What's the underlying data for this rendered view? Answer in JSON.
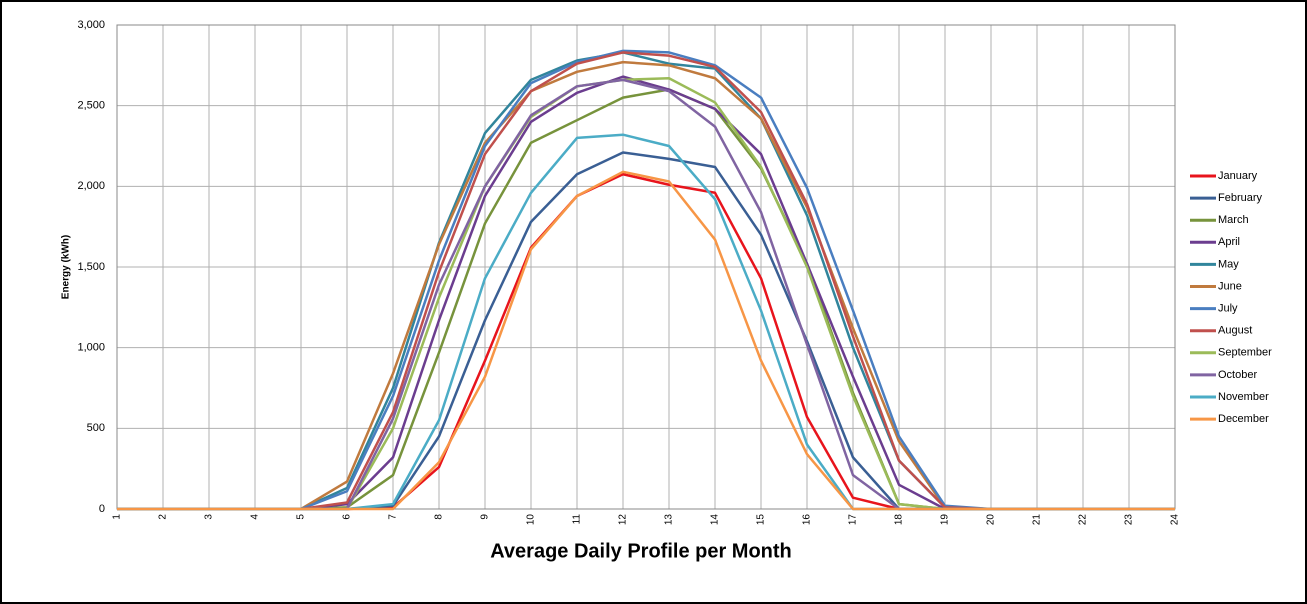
{
  "chart_data": {
    "type": "line",
    "title": "Average Daily Profile per Month",
    "ylabel": "Energy (kWh)",
    "x": [
      1,
      2,
      3,
      4,
      5,
      6,
      7,
      8,
      9,
      10,
      11,
      12,
      13,
      14,
      15,
      16,
      17,
      18,
      19,
      20,
      21,
      22,
      23,
      24
    ],
    "xlim": [
      1,
      24
    ],
    "xticks": [
      1,
      2,
      3,
      4,
      5,
      6,
      7,
      8,
      9,
      10,
      11,
      12,
      13,
      14,
      15,
      16,
      17,
      18,
      19,
      20,
      21,
      22,
      23,
      24
    ],
    "ylim": [
      0,
      3000
    ],
    "yticks": [
      0,
      500,
      {
        "value": 1000,
        "label": "1,000"
      },
      {
        "value": 1500,
        "label": "1,500"
      },
      {
        "value": 2000,
        "label": "2,000"
      },
      {
        "value": 2500,
        "label": "2,500"
      },
      {
        "value": 3000,
        "label": "3,000"
      }
    ],
    "grid": true,
    "legend": "right",
    "series": [
      {
        "name": "January",
        "color": "#e8141c",
        "values": [
          0,
          0,
          0,
          0,
          0,
          0,
          10,
          260,
          920,
          1620,
          1940,
          2075,
          2010,
          1960,
          1430,
          570,
          70,
          0,
          0,
          0,
          0,
          0,
          0,
          0
        ]
      },
      {
        "name": "February",
        "color": "#3a5f94",
        "values": [
          0,
          0,
          0,
          0,
          0,
          0,
          20,
          450,
          1170,
          1780,
          2075,
          2210,
          2170,
          2120,
          1700,
          1040,
          320,
          0,
          0,
          0,
          0,
          0,
          0,
          0
        ]
      },
      {
        "name": "March",
        "color": "#77933c",
        "values": [
          0,
          0,
          0,
          0,
          0,
          10,
          210,
          970,
          1770,
          2270,
          2410,
          2550,
          2600,
          2480,
          2110,
          1520,
          720,
          30,
          0,
          0,
          0,
          0,
          0,
          0
        ]
      },
      {
        "name": "April",
        "color": "#6b3d8f",
        "values": [
          0,
          0,
          0,
          0,
          0,
          30,
          320,
          1170,
          1940,
          2400,
          2580,
          2680,
          2600,
          2480,
          2200,
          1520,
          820,
          150,
          0,
          0,
          0,
          0,
          0,
          0
        ]
      },
      {
        "name": "May",
        "color": "#31859c",
        "values": [
          0,
          0,
          0,
          0,
          0,
          130,
          750,
          1650,
          2330,
          2660,
          2780,
          2830,
          2760,
          2730,
          2420,
          1820,
          1000,
          300,
          10,
          0,
          0,
          0,
          0,
          0
        ]
      },
      {
        "name": "June",
        "color": "#c07a3e",
        "values": [
          0,
          0,
          0,
          0,
          0,
          170,
          840,
          1640,
          2270,
          2590,
          2710,
          2770,
          2750,
          2670,
          2420,
          1870,
          1120,
          420,
          10,
          0,
          0,
          0,
          0,
          0
        ]
      },
      {
        "name": "July",
        "color": "#4a7ec0",
        "values": [
          0,
          0,
          0,
          0,
          0,
          110,
          700,
          1540,
          2250,
          2640,
          2770,
          2840,
          2830,
          2750,
          2550,
          1990,
          1230,
          450,
          20,
          0,
          0,
          0,
          0,
          0
        ]
      },
      {
        "name": "August",
        "color": "#c0504d",
        "values": [
          0,
          0,
          0,
          0,
          0,
          40,
          600,
          1470,
          2200,
          2590,
          2760,
          2830,
          2810,
          2740,
          2460,
          1890,
          1070,
          300,
          10,
          0,
          0,
          0,
          0,
          0
        ]
      },
      {
        "name": "September",
        "color": "#9bbb59",
        "values": [
          0,
          0,
          0,
          0,
          0,
          0,
          500,
          1310,
          2000,
          2430,
          2620,
          2660,
          2670,
          2520,
          2120,
          1500,
          700,
          30,
          0,
          0,
          0,
          0,
          0,
          0
        ]
      },
      {
        "name": "October",
        "color": "#8064a2",
        "values": [
          0,
          0,
          0,
          0,
          0,
          0,
          560,
          1390,
          2000,
          2440,
          2620,
          2660,
          2590,
          2370,
          1840,
          1020,
          210,
          0,
          0,
          0,
          0,
          0,
          0,
          0
        ]
      },
      {
        "name": "November",
        "color": "#4bacc6",
        "values": [
          0,
          0,
          0,
          0,
          0,
          0,
          30,
          550,
          1430,
          1960,
          2300,
          2320,
          2250,
          1920,
          1230,
          400,
          0,
          0,
          0,
          0,
          0,
          0,
          0,
          0
        ]
      },
      {
        "name": "December",
        "color": "#f79646",
        "values": [
          0,
          0,
          0,
          0,
          0,
          0,
          0,
          290,
          820,
          1610,
          1940,
          2090,
          2030,
          1670,
          920,
          340,
          0,
          0,
          0,
          0,
          0,
          0,
          0,
          0
        ]
      }
    ]
  }
}
